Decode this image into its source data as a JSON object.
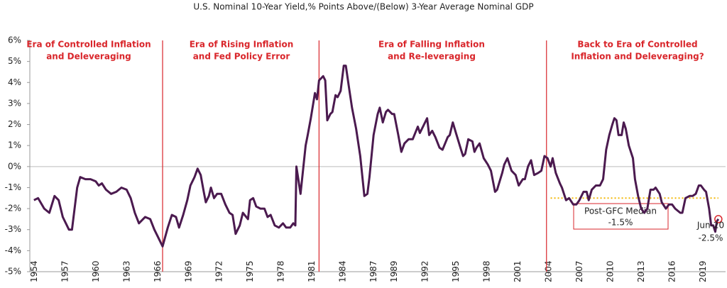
{
  "chart_data": {
    "type": "line",
    "title": "U.S. Nominal 10-Year Yield,% Points Above/(Below) 3-Year Average Nominal GDP",
    "color": "#4b1a4f",
    "divider_color": "#d9262b",
    "median_color": "#f2b705",
    "xlim": [
      1953.6,
      2021.2
    ],
    "ylim": [
      -5,
      6
    ],
    "yticks": [
      {
        "value": 6,
        "label": "6%"
      },
      {
        "value": 5,
        "label": "5%"
      },
      {
        "value": 4,
        "label": "4%"
      },
      {
        "value": 3,
        "label": "3%"
      },
      {
        "value": 2,
        "label": "2%"
      },
      {
        "value": 1,
        "label": "1%"
      },
      {
        "value": 0,
        "label": "0%"
      },
      {
        "value": -1,
        "label": "-1%"
      },
      {
        "value": -2,
        "label": "-2%"
      },
      {
        "value": -3,
        "label": "-3%"
      },
      {
        "value": -4,
        "label": "-4%"
      },
      {
        "value": -5,
        "label": "-5%"
      }
    ],
    "xticks": [
      1954,
      1957,
      1960,
      1963,
      1966,
      1969,
      1972,
      1975,
      1978,
      1981,
      1984,
      1987,
      1989,
      1992,
      1995,
      1998,
      2001,
      2004,
      2007,
      2010,
      2013,
      2016,
      2019
    ],
    "dividers": [
      1966.5,
      1981.7,
      2003.8
    ],
    "eras": [
      [
        "Era of Controlled Inflation",
        "and Deleveraging"
      ],
      [
        "Era of Rising Inflation",
        "and Fed Policy Error"
      ],
      [
        "Era of Falling Inflation",
        "and Re-leveraging"
      ],
      [
        "Back to Era of Controlled",
        "Inflation and Deleveraging?"
      ]
    ],
    "median": {
      "value": -1.5,
      "start": 2004.2,
      "end": 2020.5,
      "label": [
        "Post-GFC Median",
        "-1.5%"
      ]
    },
    "last_point_label": [
      "Jun-20",
      "-2.5%"
    ],
    "x": [
      1954.0,
      1954.4,
      1955.0,
      1955.5,
      1956.0,
      1956.4,
      1956.8,
      1957.4,
      1957.7,
      1958.2,
      1958.5,
      1959.0,
      1959.5,
      1960.0,
      1960.3,
      1960.6,
      1961.0,
      1961.5,
      1962.0,
      1962.5,
      1963.0,
      1963.4,
      1963.8,
      1964.2,
      1964.8,
      1965.3,
      1965.7,
      1966.0,
      1966.5,
      1967.0,
      1967.4,
      1967.8,
      1968.1,
      1968.5,
      1968.9,
      1969.2,
      1969.6,
      1969.9,
      1970.2,
      1970.5,
      1970.7,
      1971.0,
      1971.2,
      1971.5,
      1971.8,
      1972.2,
      1972.6,
      1973.0,
      1973.3,
      1973.6,
      1974.0,
      1974.3,
      1974.8,
      1975.0,
      1975.3,
      1975.6,
      1976.0,
      1976.4,
      1976.7,
      1977.0,
      1977.4,
      1977.8,
      1978.2,
      1978.5,
      1978.9,
      1979.2,
      1979.4,
      1979.5,
      1979.9,
      1980.4,
      1980.6,
      1980.9,
      1981.3,
      1981.5,
      1981.7,
      1982.1,
      1982.3,
      1982.5,
      1982.8,
      1983.0,
      1983.3,
      1983.5,
      1983.8,
      1984.1,
      1984.3,
      1984.6,
      1984.9,
      1985.3,
      1985.7,
      1986.1,
      1986.4,
      1986.6,
      1987.0,
      1987.4,
      1987.6,
      1987.9,
      1988.2,
      1988.4,
      1988.8,
      1989.0,
      1989.4,
      1989.7,
      1990.0,
      1990.4,
      1990.8,
      1991.3,
      1991.5,
      1991.8,
      1992.2,
      1992.4,
      1992.7,
      1993.0,
      1993.4,
      1993.7,
      1994.2,
      1994.4,
      1994.7,
      1995.0,
      1995.5,
      1995.7,
      1995.9,
      1996.2,
      1996.6,
      1996.8,
      1997.0,
      1997.3,
      1997.7,
      1998.1,
      1998.4,
      1998.8,
      1999.0,
      1999.5,
      1999.7,
      2000.0,
      2000.4,
      2000.8,
      2001.1,
      2001.5,
      2001.7,
      2002.0,
      2002.3,
      2002.6,
      2003.0,
      2003.3,
      2003.6,
      2003.9,
      2004.2,
      2004.4,
      2004.7,
      2005.1,
      2005.3,
      2005.7,
      2006.0,
      2006.4,
      2006.7,
      2007.0,
      2007.4,
      2007.7,
      2007.9,
      2008.2,
      2008.6,
      2009.0,
      2009.3,
      2009.6,
      2009.9,
      2010.2,
      2010.4,
      2010.6,
      2010.8,
      2011.1,
      2011.3,
      2011.5,
      2011.8,
      2012.2,
      2012.4,
      2012.7,
      2013.0,
      2013.3,
      2013.6,
      2013.9,
      2014.2,
      2014.4,
      2014.8,
      2015.0,
      2015.4,
      2015.7,
      2016.0,
      2016.3,
      2016.8,
      2017.0,
      2017.3,
      2017.7,
      2018.0,
      2018.3,
      2018.6,
      2018.8,
      2019.1,
      2019.3,
      2019.6,
      2019.8,
      2020.0,
      2020.2,
      2020.35,
      2020.5
    ],
    "values": [
      -1.6,
      -1.5,
      -2.0,
      -2.2,
      -1.4,
      -1.6,
      -2.4,
      -3.0,
      -3.0,
      -1.0,
      -0.5,
      -0.6,
      -0.6,
      -0.7,
      -0.9,
      -0.8,
      -1.1,
      -1.3,
      -1.2,
      -1.0,
      -1.1,
      -1.5,
      -2.2,
      -2.7,
      -2.4,
      -2.5,
      -3.0,
      -3.3,
      -3.8,
      -2.9,
      -2.3,
      -2.4,
      -2.9,
      -2.3,
      -1.6,
      -0.9,
      -0.5,
      -0.1,
      -0.4,
      -1.2,
      -1.7,
      -1.4,
      -1.0,
      -1.5,
      -1.3,
      -1.3,
      -1.8,
      -2.2,
      -2.3,
      -3.2,
      -2.8,
      -2.2,
      -2.5,
      -1.6,
      -1.5,
      -1.9,
      -2.0,
      -2.0,
      -2.4,
      -2.3,
      -2.8,
      -2.9,
      -2.7,
      -2.9,
      -2.9,
      -2.7,
      -2.8,
      0.0,
      -1.3,
      1.0,
      1.5,
      2.3,
      3.5,
      3.2,
      4.1,
      4.3,
      4.1,
      2.2,
      2.5,
      2.6,
      3.4,
      3.3,
      3.6,
      4.8,
      4.8,
      3.8,
      2.8,
      1.8,
      0.5,
      -1.4,
      -1.3,
      -0.5,
      1.5,
      2.5,
      2.8,
      2.1,
      2.6,
      2.7,
      2.5,
      2.5,
      1.5,
      0.7,
      1.1,
      1.3,
      1.3,
      1.9,
      1.6,
      1.9,
      2.3,
      1.5,
      1.7,
      1.4,
      0.9,
      0.8,
      1.4,
      1.5,
      2.1,
      1.6,
      0.8,
      0.5,
      0.6,
      1.3,
      1.2,
      0.7,
      0.9,
      1.1,
      0.4,
      0.1,
      -0.2,
      -1.2,
      -1.1,
      -0.3,
      0.1,
      0.4,
      -0.2,
      -0.4,
      -0.9,
      -0.6,
      -0.6,
      0.0,
      0.3,
      -0.4,
      -0.3,
      -0.2,
      0.5,
      0.4,
      0.0,
      0.4,
      -0.3,
      -0.8,
      -1.0,
      -1.6,
      -1.5,
      -1.8,
      -1.8,
      -1.6,
      -1.2,
      -1.2,
      -1.6,
      -1.1,
      -0.9,
      -0.9,
      -0.6,
      0.8,
      1.5,
      2.0,
      2.3,
      2.2,
      1.5,
      1.5,
      2.1,
      1.8,
      1.0,
      0.4,
      -0.6,
      -1.4,
      -2.0,
      -2.2,
      -2.0,
      -1.1,
      -1.1,
      -1.0,
      -1.3,
      -1.7,
      -2.0,
      -1.8,
      -1.8,
      -2.0,
      -2.2,
      -2.2,
      -1.5,
      -1.4,
      -1.4,
      -1.3,
      -0.9,
      -0.9,
      -1.1,
      -1.2,
      -2.0,
      -2.8,
      -2.8,
      -3.1,
      -2.6,
      -2.5
    ]
  }
}
